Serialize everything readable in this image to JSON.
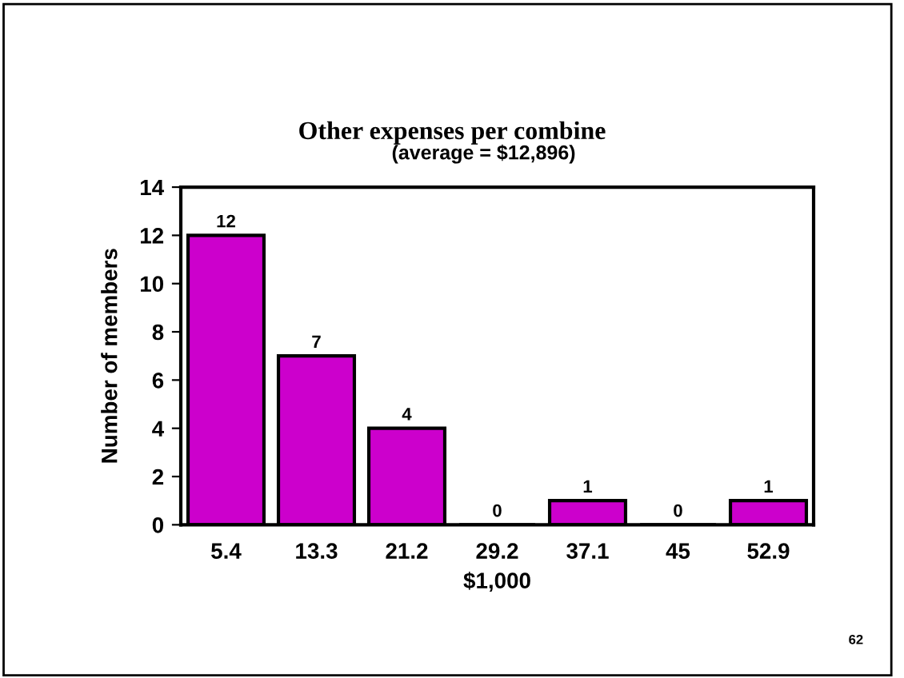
{
  "chart_data": {
    "type": "bar",
    "title": "Other expenses per combine",
    "subtitle": "(average = $12,896)",
    "xlabel": "$1,000",
    "ylabel": "Number of members",
    "categories": [
      "5.4",
      "13.3",
      "21.2",
      "29.2",
      "37.1",
      "45",
      "52.9"
    ],
    "values": [
      12,
      7,
      4,
      0,
      1,
      0,
      1
    ],
    "color": "#cc00cc",
    "ylim": [
      0,
      14
    ],
    "yticks": [
      0,
      2,
      4,
      6,
      8,
      10,
      12,
      14
    ],
    "grid": false,
    "legend": false,
    "data_labels": true,
    "annotations": [
      "62"
    ]
  }
}
